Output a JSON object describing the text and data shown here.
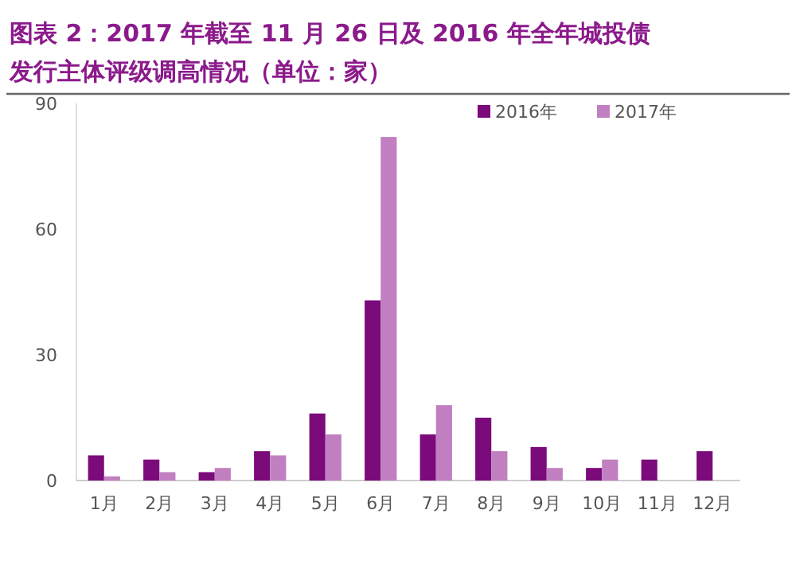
{
  "chart_data": {
    "type": "bar",
    "title": "图表 2：2017 年截至 11 月 26 日及 2016 年全年城投债发行主体评级调高情况（单位：家）",
    "categories": [
      "1月",
      "2月",
      "3月",
      "4月",
      "5月",
      "6月",
      "7月",
      "8月",
      "9月",
      "10月",
      "11月",
      "12月"
    ],
    "series": [
      {
        "name": "2016年",
        "color": "#7b0a7b",
        "values": [
          6,
          5,
          2,
          7,
          16,
          43,
          11,
          15,
          8,
          3,
          5,
          7
        ]
      },
      {
        "name": "2017年",
        "color": "#c17fc1",
        "values": [
          1,
          2,
          3,
          6,
          11,
          82,
          18,
          7,
          3,
          5,
          null,
          null
        ]
      }
    ],
    "ylim": [
      0,
      90
    ],
    "yticks": [
      0,
      30,
      60,
      90
    ],
    "grid": false,
    "legend": "top right"
  }
}
